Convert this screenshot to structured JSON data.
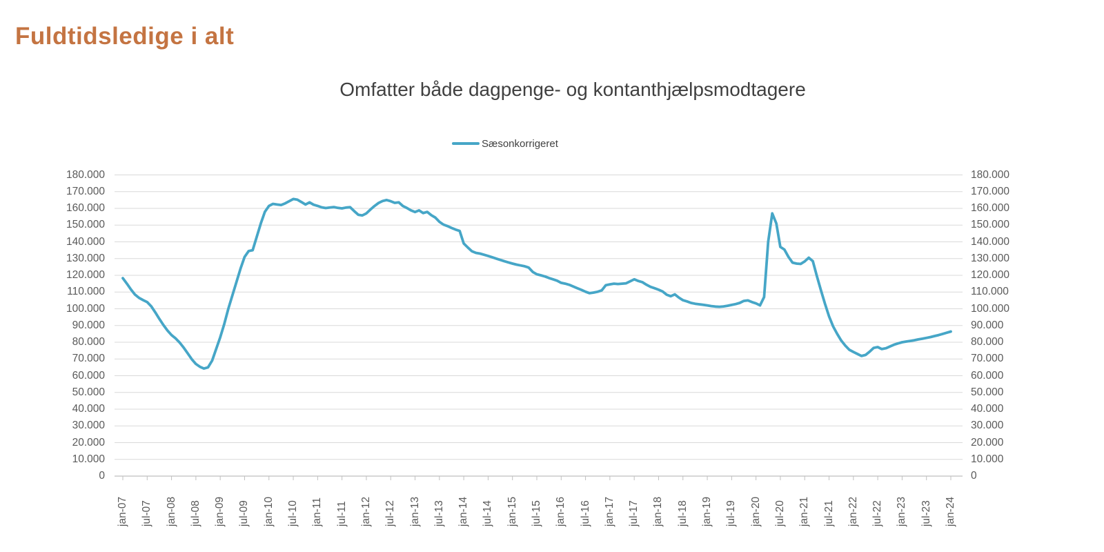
{
  "page_title": "Fuldtidsledige i alt",
  "colors": {
    "title": "#c47442",
    "subtitle": "#404040",
    "axis_labels": "#595959",
    "gridline": "#d9d9d9",
    "axis_line": "#bfbfbf",
    "series_line": "#46a6c7"
  },
  "legend": {
    "marker": "line-marker",
    "label": "Sæsonkorrigeret"
  },
  "chart_data": {
    "type": "line",
    "title": "Omfatter både dagpenge- og kontanthjælpsmodtagere",
    "xlabel": "",
    "ylabel": "",
    "ylim": [
      0,
      180000
    ],
    "y_tick_step": 10000,
    "grid": "horizontal",
    "legend_position": "top-center",
    "x_unit": "month",
    "x_range": [
      "jan-07",
      "jan-24"
    ],
    "x_tick_labels": [
      "jan-07",
      "jul-07",
      "jan-08",
      "jul-08",
      "jan-09",
      "jul-09",
      "jan-10",
      "jul-10",
      "jan-11",
      "jul-11",
      "jan-12",
      "jul-12",
      "jan-13",
      "jul-13",
      "jan-14",
      "jul-14",
      "jan-15",
      "jul-15",
      "jan-16",
      "jul-16",
      "jan-17",
      "jul-17",
      "jan-18",
      "jul-18",
      "jan-19",
      "jul-19",
      "jan-20",
      "jul-20",
      "jan-21",
      "jul-21",
      "jan-22",
      "jul-22",
      "jan-23",
      "jul-23",
      "jan-24"
    ],
    "y_tick_labels": [
      "0",
      "10.000",
      "20.000",
      "30.000",
      "40.000",
      "50.000",
      "60.000",
      "70.000",
      "80.000",
      "90.000",
      "100.000",
      "110.000",
      "120.000",
      "130.000",
      "140.000",
      "150.000",
      "160.000",
      "170.000",
      "180.000"
    ],
    "series": [
      {
        "name": "Sæsonkorrigeret",
        "color": "#46a6c7",
        "start": "2007-01",
        "end": "2024-01",
        "monthly_values": [
          118300,
          115000,
          111500,
          108500,
          106500,
          105200,
          104000,
          101500,
          97800,
          94000,
          90300,
          87000,
          84300,
          82300,
          79800,
          76800,
          73300,
          69800,
          67000,
          65300,
          64300,
          65000,
          69000,
          76000,
          83000,
          91000,
          100000,
          108000,
          116000,
          124000,
          131000,
          134500,
          135000,
          143000,
          151000,
          158000,
          161500,
          162700,
          162300,
          162000,
          163000,
          164300,
          165600,
          165200,
          163800,
          162300,
          163600,
          162200,
          161500,
          160600,
          160200,
          160500,
          160800,
          160300,
          160000,
          160500,
          160700,
          158400,
          156200,
          155800,
          157000,
          159300,
          161400,
          163200,
          164400,
          165000,
          164300,
          163300,
          163600,
          161400,
          160200,
          158800,
          157800,
          158800,
          157200,
          157900,
          155900,
          154500,
          152000,
          150300,
          149400,
          148300,
          147300,
          146500,
          139000,
          136600,
          134400,
          133400,
          133000,
          132300,
          131600,
          130800,
          130000,
          129200,
          128400,
          127700,
          127000,
          126400,
          125900,
          125400,
          124600,
          122000,
          120600,
          120000,
          119300,
          118400,
          117600,
          116800,
          115500,
          115000,
          114300,
          113300,
          112300,
          111300,
          110200,
          109300,
          109700,
          110200,
          111000,
          114100,
          114600,
          115000,
          114800,
          115000,
          115200,
          116400,
          117600,
          116600,
          115900,
          114400,
          113100,
          112300,
          111400,
          110300,
          108400,
          107500,
          108600,
          106700,
          105100,
          104400,
          103500,
          103000,
          102700,
          102400,
          102000,
          101600,
          101300,
          101200,
          101400,
          101800,
          102300,
          102800,
          103500,
          104700,
          105000,
          104000,
          103200,
          102000,
          107000,
          140000,
          157000,
          151000,
          137000,
          135400,
          131000,
          127600,
          127000,
          126800,
          128300,
          130500,
          128500,
          119500,
          111000,
          103000,
          95500,
          89500,
          85000,
          81000,
          78000,
          75500,
          74200,
          73000,
          71800,
          72400,
          74400,
          76600,
          77100,
          75900,
          76400,
          77500,
          78500,
          79300,
          80000,
          80400,
          80800,
          81200,
          81700,
          82100,
          82600,
          83100,
          83700,
          84300,
          85000,
          85700,
          86400
        ]
      }
    ]
  }
}
